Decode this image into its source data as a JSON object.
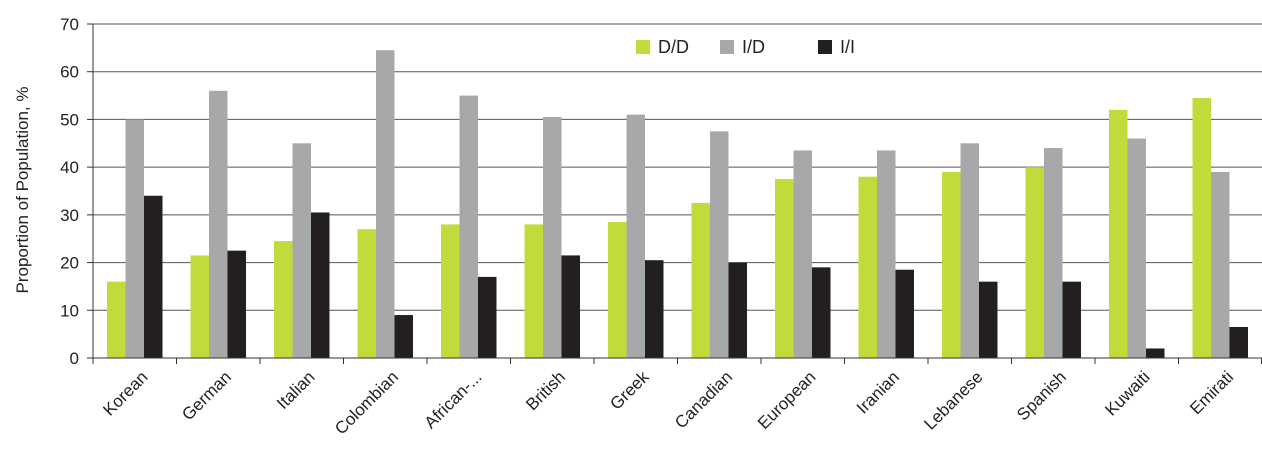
{
  "chart_data": {
    "type": "bar",
    "title": "",
    "xlabel": "",
    "ylabel": "Proportion of Population, %",
    "ylim": [
      0,
      70
    ],
    "yticks": [
      0,
      10,
      20,
      30,
      40,
      50,
      60,
      70
    ],
    "grid": true,
    "legend_position": "top-center",
    "categories": [
      "Korean",
      "German",
      "Italian",
      "Colombian",
      "African-...",
      "British",
      "Greek",
      "Canadian",
      "European",
      "Iranian",
      "Lebanese",
      "Spanish",
      "Kuwaiti",
      "Emirati"
    ],
    "series": [
      {
        "name": "D/D",
        "color": "#c2db3a",
        "values": [
          16,
          21.5,
          24.5,
          27,
          28,
          28,
          28.5,
          32.5,
          37.5,
          38,
          39,
          40,
          52,
          54.5
        ]
      },
      {
        "name": "I/D",
        "color": "#a7a8aa",
        "values": [
          50,
          56,
          45,
          64.5,
          55,
          50.5,
          51,
          47.5,
          43.5,
          43.5,
          45,
          44,
          46,
          39
        ]
      },
      {
        "name": "I/I",
        "color": "#231f20",
        "values": [
          34,
          22.5,
          30.5,
          9,
          17,
          21.5,
          20.5,
          20,
          19,
          18.5,
          16,
          16,
          2,
          6.5
        ]
      }
    ]
  }
}
